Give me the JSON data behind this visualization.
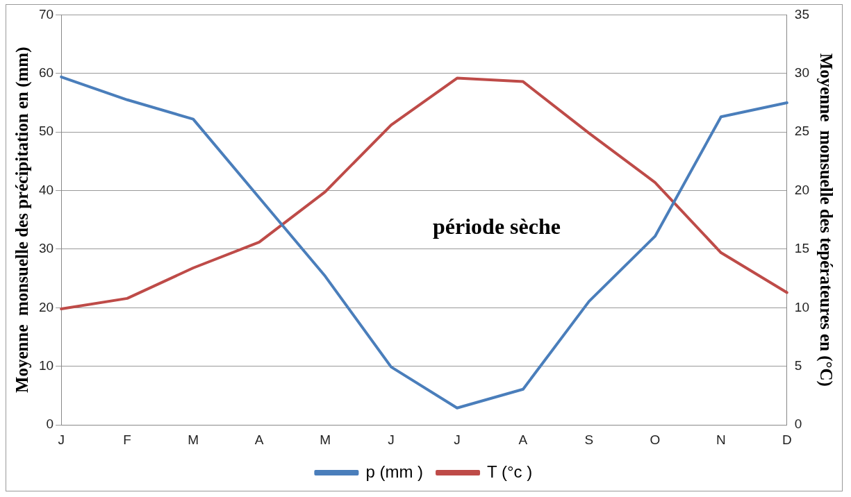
{
  "chart_data": {
    "type": "line",
    "ylabel": "Moyenne  monsuelle des précipitation en (mm)",
    "y2label": "Moyenne  monsuelle des tepérateures en (°C)",
    "categories": [
      "J",
      "F",
      "M",
      "A",
      "M",
      "J",
      "J",
      "A",
      "S",
      "O",
      "N",
      "D"
    ],
    "series": [
      {
        "name": "p (mm )",
        "color": "#4a7ebb",
        "values": [
          59.4,
          55.5,
          52.2,
          38.8,
          25.4,
          9.9,
          2.9,
          6.1,
          21.1,
          32.2,
          52.6,
          55
        ]
      },
      {
        "name": "T (°c )",
        "color": "#be4b48",
        "axis": "y2",
        "values": [
          9.9,
          10.8,
          13.4,
          15.6,
          19.9,
          25.6,
          29.6,
          29.3,
          24.9,
          20.7,
          14.7,
          11.3
        ]
      }
    ],
    "ylim": [
      0,
      70
    ],
    "yticks": [
      0,
      10,
      20,
      30,
      40,
      50,
      60,
      70
    ],
    "y2lim": [
      0,
      35
    ],
    "y2ticks": [
      0,
      5,
      10,
      15,
      20,
      25,
      30,
      35
    ],
    "grid": "y",
    "legend": "bottom",
    "marker": "none",
    "line_style": "solid",
    "annotations": [
      "période sèche"
    ]
  }
}
